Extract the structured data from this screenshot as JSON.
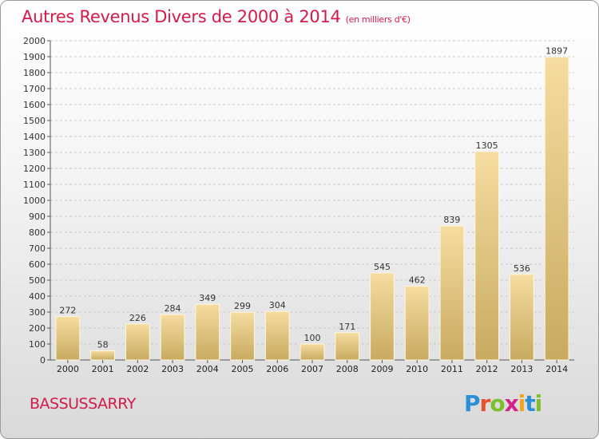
{
  "title": "Autres Revenus Divers de 2000 à 2014",
  "unit_note": "(en milliers d'€)",
  "commune": "BASSUSSARRY",
  "logo": {
    "letters": [
      "P",
      "r",
      "o",
      "x",
      "i",
      "t",
      "i"
    ],
    "colors": [
      "#2c8fd6",
      "#e8502a",
      "#7cbf2a",
      "#d6208a",
      "#f2a516",
      "#2c8fd6",
      "#7cbf2a"
    ]
  },
  "colors": {
    "bar_top": "#f5dca0",
    "bar_bottom": "#c8ab60",
    "grid": "#c8c8c8",
    "accent": "#d11b4a"
  },
  "chart_data": {
    "type": "bar",
    "categories": [
      "2000",
      "2001",
      "2002",
      "2003",
      "2004",
      "2005",
      "2006",
      "2007",
      "2008",
      "2009",
      "2010",
      "2011",
      "2012",
      "2013",
      "2014"
    ],
    "values": [
      272,
      58,
      226,
      284,
      349,
      299,
      304,
      100,
      171,
      545,
      462,
      839,
      1305,
      536,
      1897
    ],
    "ylim": [
      0,
      2000
    ],
    "ytick_step": 100,
    "grid": true
  }
}
